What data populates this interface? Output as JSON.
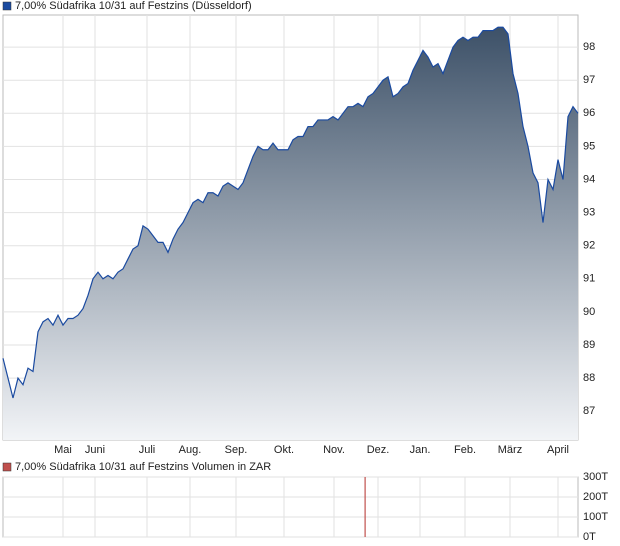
{
  "chart_data": [
    {
      "type": "area",
      "title": "7,00% Südafrika 10/31 auf Festzins (Düsseldorf)",
      "color": "#1a4aa0",
      "fill_top": "#3d5168",
      "fill_bottom": "#f2f4f7",
      "values": [
        88.6,
        88.0,
        87.4,
        88.0,
        87.8,
        88.3,
        88.2,
        89.4,
        89.7,
        89.8,
        89.6,
        89.9,
        89.6,
        89.8,
        89.8,
        89.9,
        90.1,
        90.5,
        91.0,
        91.2,
        91.0,
        91.1,
        91.0,
        91.2,
        91.3,
        91.6,
        91.9,
        92.0,
        92.6,
        92.5,
        92.3,
        92.1,
        92.1,
        91.8,
        92.2,
        92.5,
        92.7,
        93.0,
        93.3,
        93.4,
        93.3,
        93.6,
        93.6,
        93.5,
        93.8,
        93.9,
        93.8,
        93.7,
        93.9,
        94.3,
        94.7,
        95.0,
        94.9,
        94.9,
        95.1,
        94.9,
        94.9,
        94.9,
        95.2,
        95.3,
        95.3,
        95.6,
        95.6,
        95.8,
        95.8,
        95.8,
        95.9,
        95.8,
        96.0,
        96.2,
        96.2,
        96.3,
        96.2,
        96.5,
        96.6,
        96.8,
        97.0,
        97.1,
        96.5,
        96.6,
        96.8,
        96.9,
        97.3,
        97.6,
        97.9,
        97.7,
        97.4,
        97.5,
        97.2,
        97.6,
        98.0,
        98.2,
        98.3,
        98.2,
        98.3,
        98.3,
        98.5,
        98.5,
        98.5,
        98.6,
        98.6,
        98.4,
        97.2,
        96.6,
        95.6,
        95.0,
        94.2,
        93.9,
        92.7,
        94.0,
        93.7,
        94.6,
        94.0,
        95.9,
        96.2,
        96.0
      ],
      "xlim": [
        0,
        115
      ],
      "xticks": [
        {
          "value": 12,
          "label": "Mai"
        },
        {
          "value": 18.4,
          "label": "Juni"
        },
        {
          "value": 28.8,
          "label": "Juli"
        },
        {
          "value": 37.4,
          "label": "Aug."
        },
        {
          "value": 46.6,
          "label": "Sep."
        },
        {
          "value": 56.2,
          "label": "Okt."
        },
        {
          "value": 66.2,
          "label": "Nov."
        },
        {
          "value": 75,
          "label": "Dez."
        },
        {
          "value": 83.4,
          "label": "Jan."
        },
        {
          "value": 92.4,
          "label": "Feb."
        },
        {
          "value": 101.4,
          "label": "März"
        },
        {
          "value": 111,
          "label": "April"
        }
      ],
      "ylim": [
        86.13,
        98.97
      ],
      "yticks": [
        87,
        88,
        89,
        90,
        91,
        92,
        93,
        94,
        95,
        96,
        97,
        98
      ],
      "grid": true
    },
    {
      "type": "bar",
      "title": "7,00% Südafrika 10/31 auf Festzins Volumen in ZAR",
      "color": "#c0504d",
      "x": [
        72.4
      ],
      "values": [
        300000
      ],
      "xlim": [
        0,
        115
      ],
      "ylim": [
        0,
        300000
      ],
      "yticks": [
        {
          "value": 0,
          "label": "0T"
        },
        {
          "value": 100000,
          "label": "100T"
        },
        {
          "value": 200000,
          "label": "200T"
        },
        {
          "value": 300000,
          "label": "300T"
        }
      ],
      "grid": true
    }
  ]
}
